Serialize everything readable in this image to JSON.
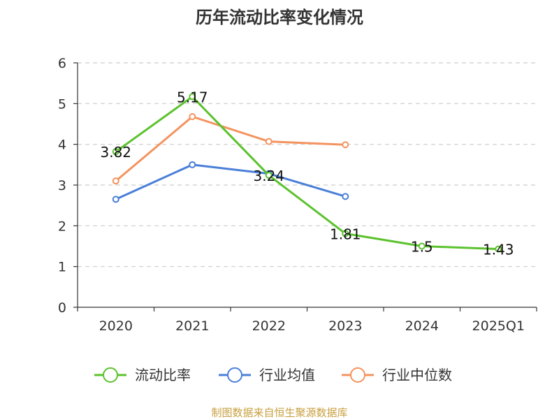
{
  "chart_data": {
    "type": "line",
    "title": "历年流动比率变化情况",
    "categories": [
      "2020",
      "2021",
      "2022",
      "2023",
      "2024",
      "2025Q1"
    ],
    "ylim": [
      0,
      6
    ],
    "yticks": [
      0,
      1,
      2,
      3,
      4,
      5,
      6
    ],
    "grid": true,
    "legend_position": "bottom",
    "series": [
      {
        "name": "流动比率",
        "color": "#5cc22e",
        "values": [
          3.82,
          5.17,
          3.24,
          1.81,
          1.5,
          1.43
        ],
        "labels": [
          "3.82",
          "5.17",
          "3.24",
          "1.81",
          "1.5",
          "1.43"
        ]
      },
      {
        "name": "行业均值",
        "color": "#4a7fd8",
        "values": [
          2.65,
          3.5,
          3.28,
          2.72,
          null,
          null
        ]
      },
      {
        "name": "行业中位数",
        "color": "#f4935e",
        "values": [
          3.1,
          4.68,
          4.07,
          3.99,
          null,
          null
        ]
      }
    ],
    "source": "制图数据来自恒生聚源数据库"
  }
}
